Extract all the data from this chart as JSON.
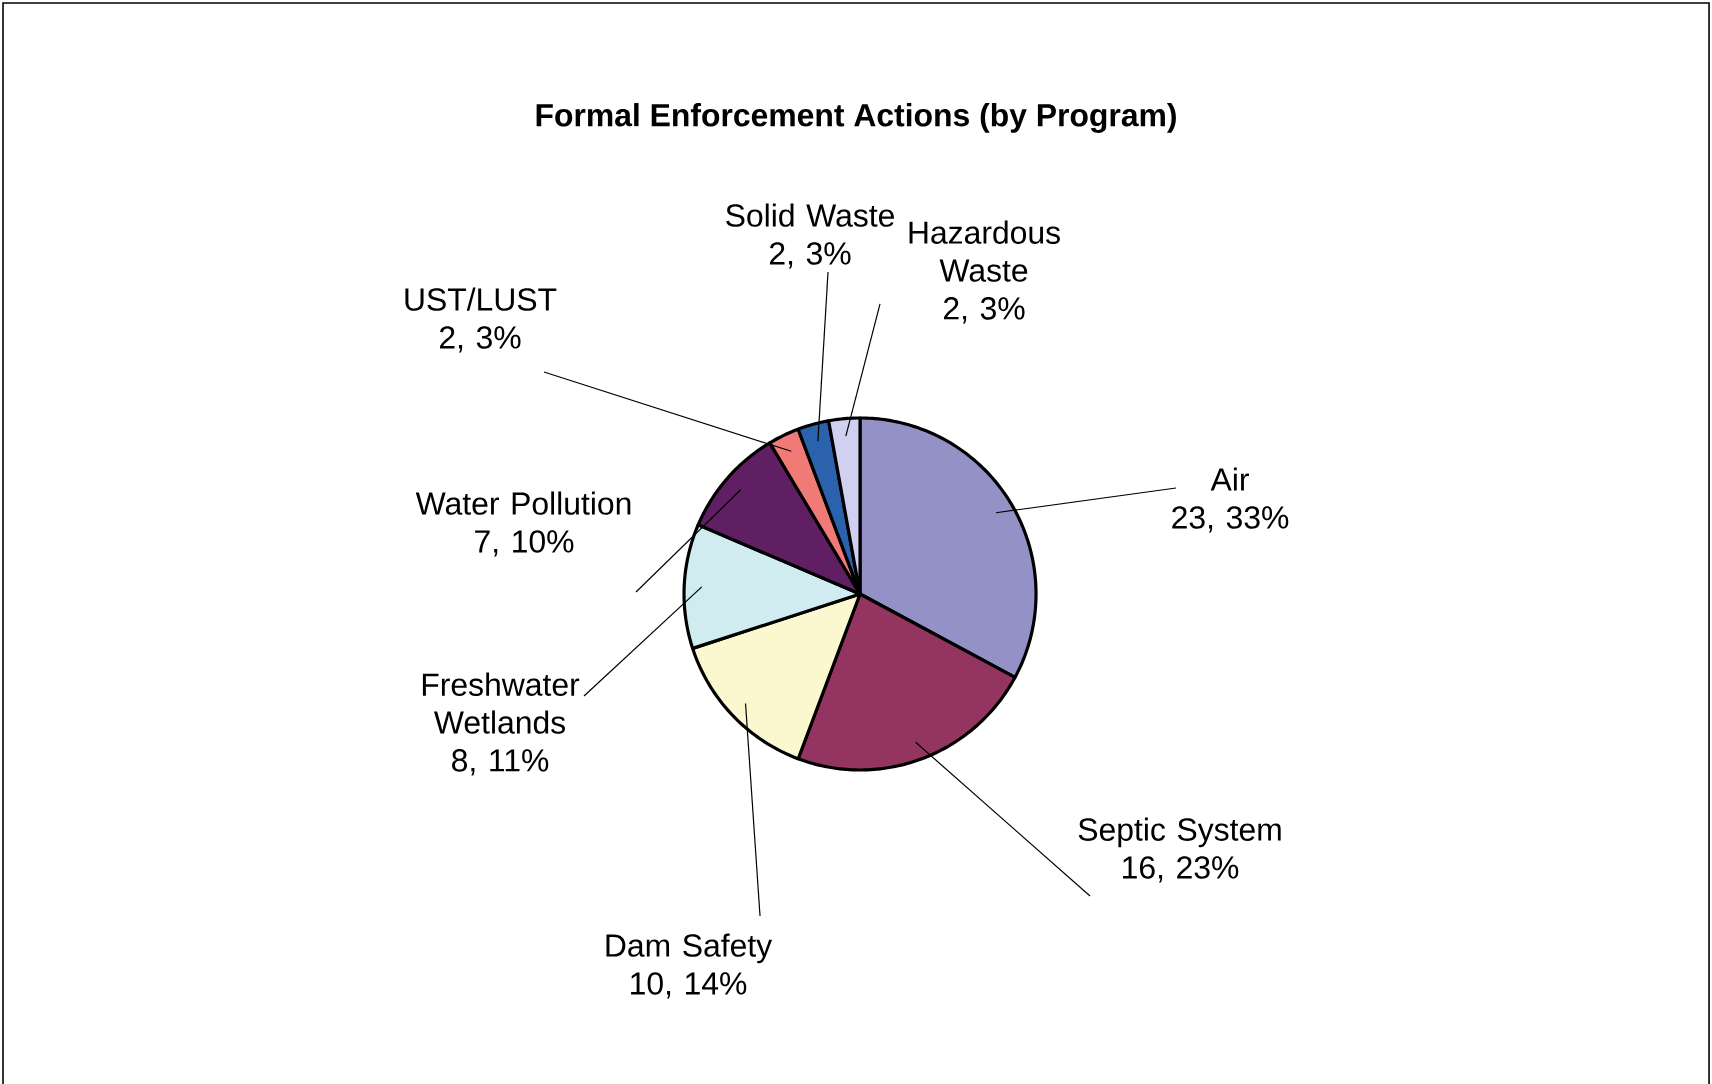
{
  "chart_data": {
    "type": "pie",
    "title": "Formal Enforcement Actions (by Program)",
    "categories": [
      "Air",
      "Septic System",
      "Dam Safety",
      "Freshwater Wetlands",
      "Water Pollution",
      "UST/LUST",
      "Solid Waste",
      "Hazardous Waste"
    ],
    "values": [
      23,
      16,
      10,
      8,
      7,
      2,
      2,
      2
    ],
    "value_labels": [
      "23, 33%",
      "16, 23%",
      "10, 14%",
      "8, 11%",
      "7, 10%",
      "2, 3%",
      "2, 3%",
      "2, 3%"
    ],
    "colors": [
      "#9391c6",
      "#943461",
      "#fbf8d0",
      "#d0ecf1",
      "#601f62",
      "#f07a75",
      "#2b62ad",
      "#d0d0f0"
    ]
  }
}
